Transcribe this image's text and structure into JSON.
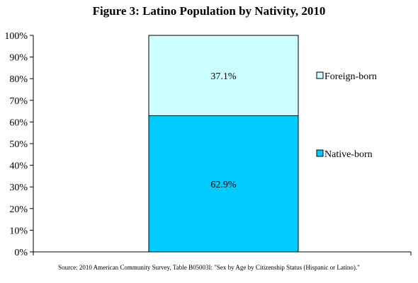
{
  "chart_data": {
    "type": "bar",
    "stacked": true,
    "normalized_percent": true,
    "title": "Figure 3: Latino Population by Nativity, 2010",
    "categories": [
      ""
    ],
    "series": [
      {
        "name": "Native-born",
        "values": [
          62.9
        ],
        "label": "62.9%",
        "color": "#00ccff"
      },
      {
        "name": "Foreign-born",
        "values": [
          37.1
        ],
        "label": "37.1%",
        "color": "#ccffff"
      }
    ],
    "ylim": [
      0,
      100
    ],
    "yticks": [
      "0%",
      "10%",
      "20%",
      "30%",
      "40%",
      "50%",
      "60%",
      "70%",
      "80%",
      "90%",
      "100%"
    ],
    "xlabel": "",
    "ylabel": "",
    "grid": false,
    "legend": "right",
    "source": "Source: 2010 American Community Survey, Table B05003I: \"Sex by Age by Citizenship Status (Hispanic or Latino).\""
  }
}
